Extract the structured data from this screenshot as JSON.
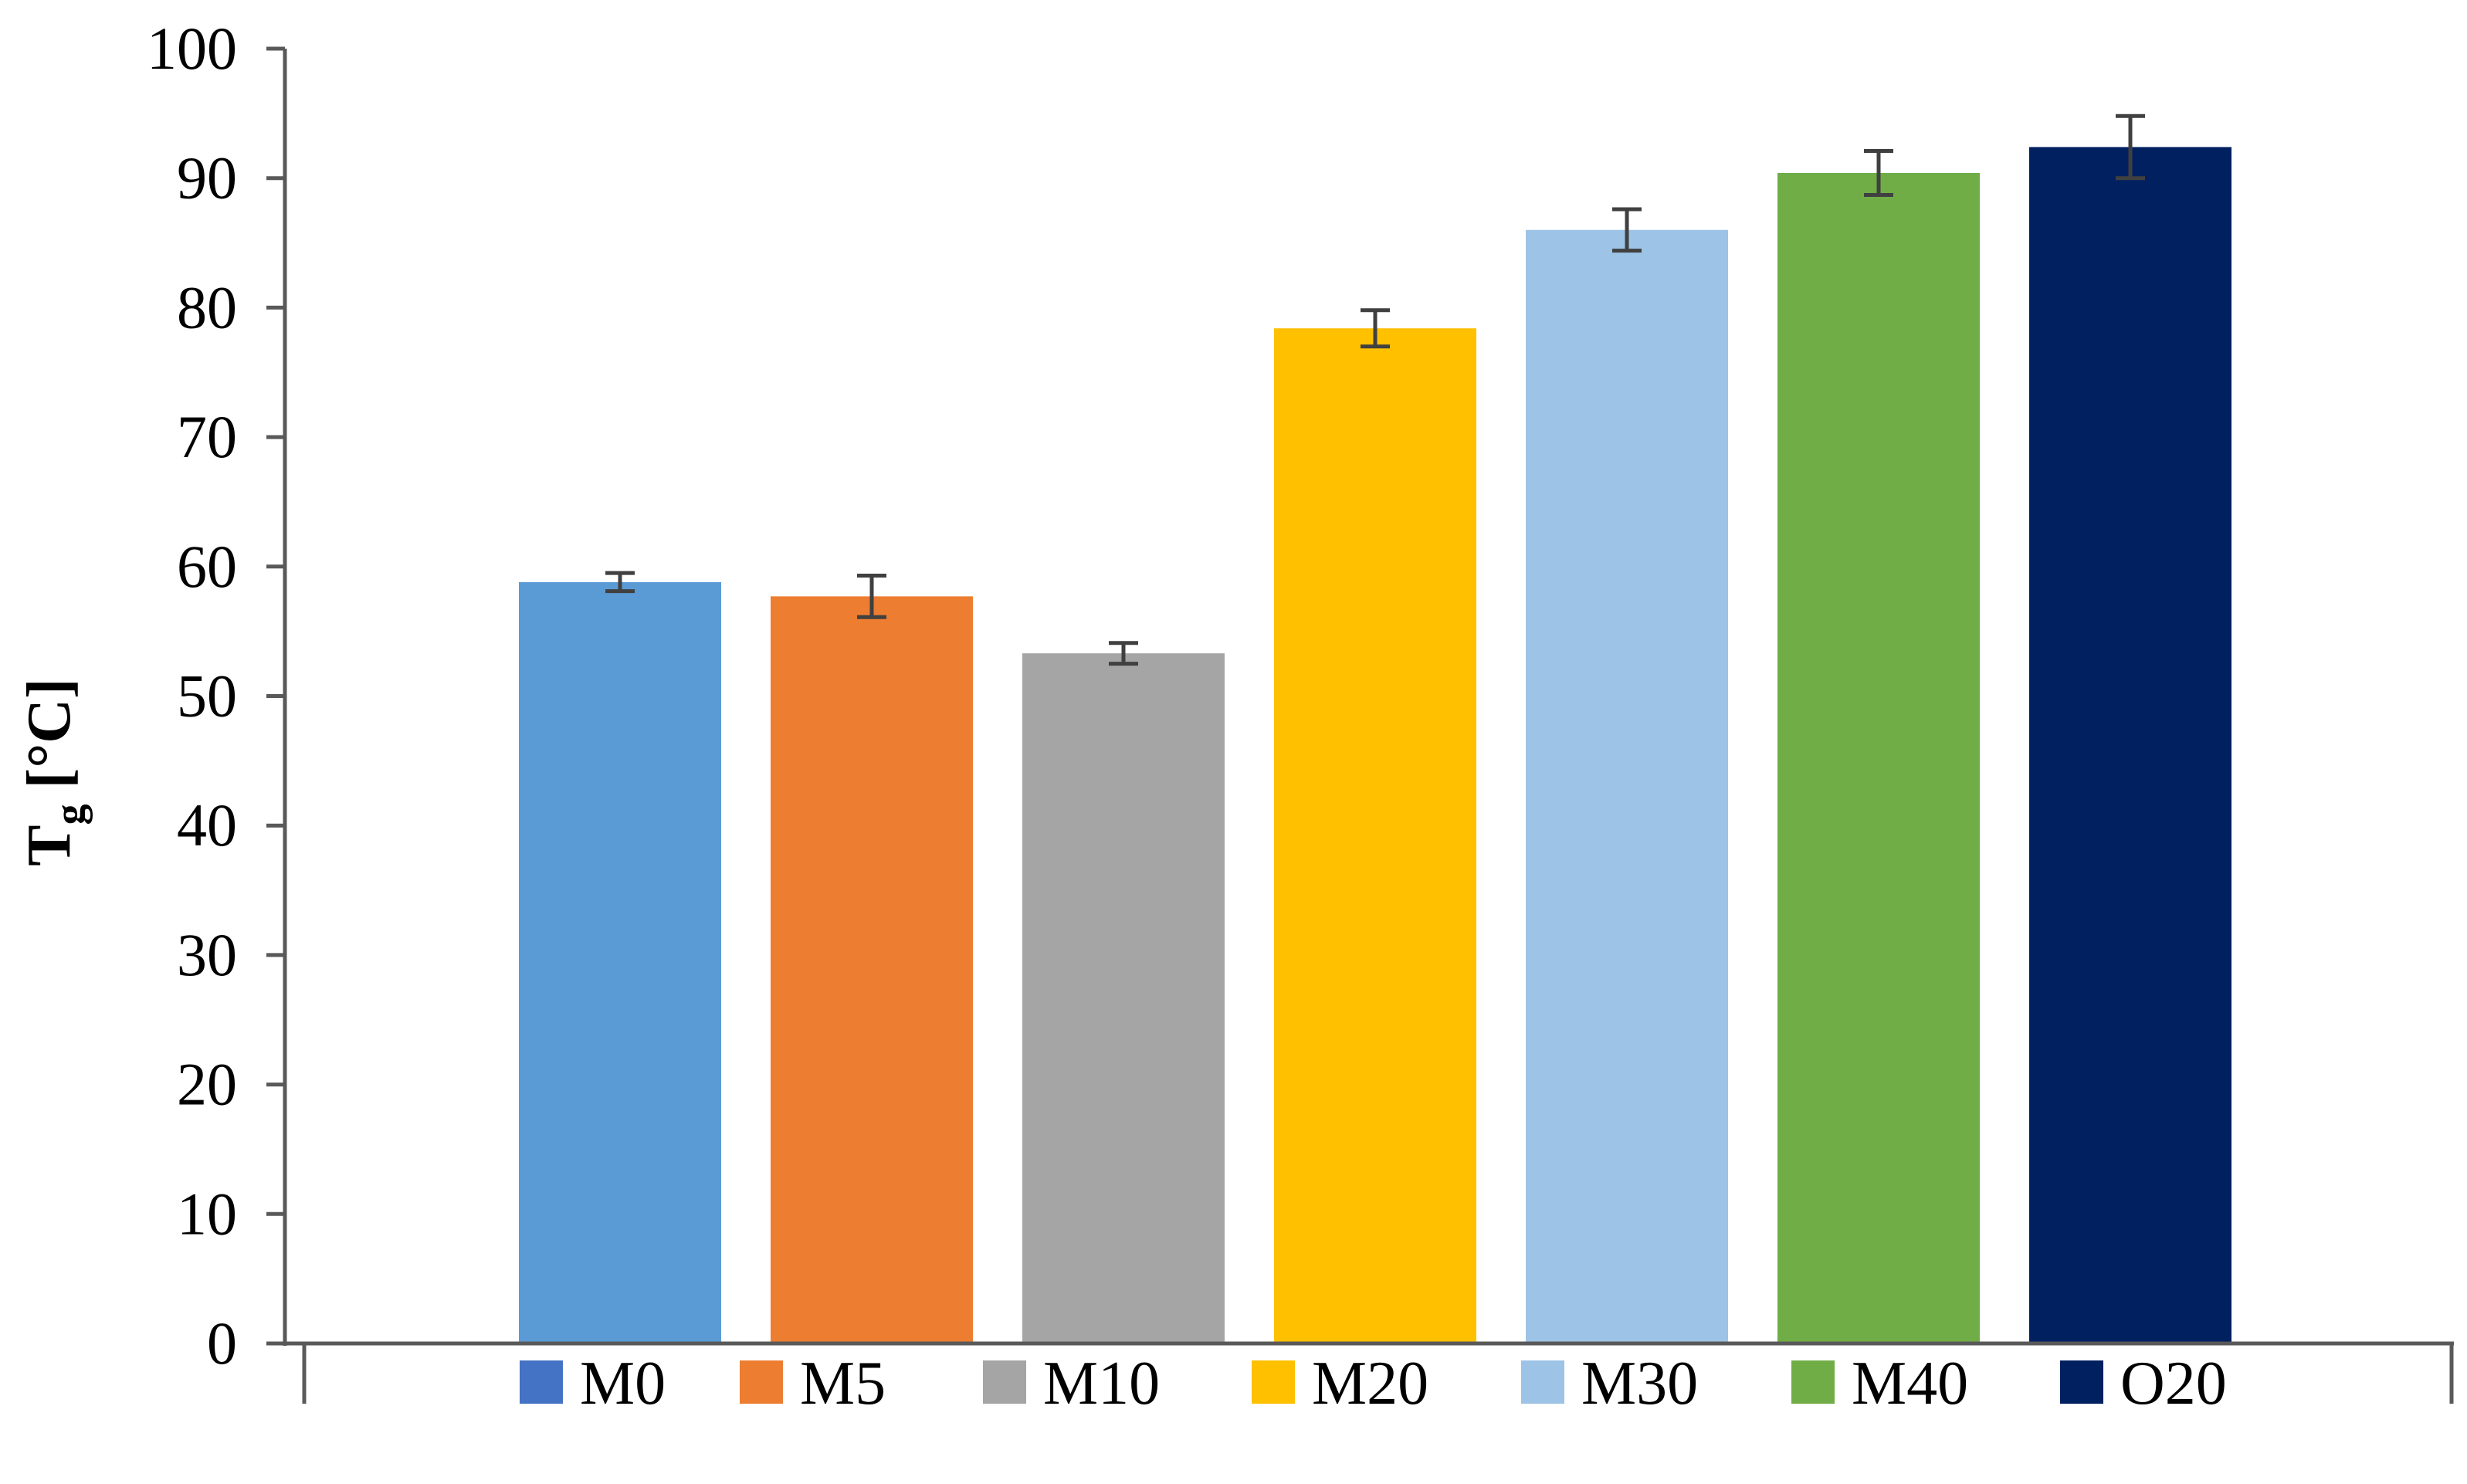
{
  "chart_data": {
    "type": "bar",
    "categories": [
      "M0",
      "M5",
      "M10",
      "M20",
      "M30",
      "M40",
      "O20"
    ],
    "series": [
      {
        "values": [
          58.8,
          57.7,
          53.3,
          78.4,
          86.0,
          90.4,
          92.4
        ],
        "errors": [
          0.7,
          1.6,
          0.8,
          1.4,
          1.6,
          1.7,
          2.4
        ]
      }
    ],
    "colors": [
      "#5B9BD5",
      "#ED7D31",
      "#A5A5A5",
      "#FFC000",
      "#9DC3E6",
      "#70AD47",
      "#002060"
    ],
    "legend_marker_colors": [
      "#4472C4",
      "#ED7D31",
      "#A5A5A5",
      "#FFC000",
      "#9DC3E6",
      "#70AD47",
      "#002060"
    ],
    "ylabel_main": "T",
    "ylabel_sub": "g",
    "ylabel_unit": " [°C]",
    "ylim": [
      0,
      100
    ],
    "yticks": [
      "0",
      "10",
      "20",
      "30",
      "40",
      "50",
      "60",
      "70",
      "80",
      "90",
      "100"
    ],
    "grid": false,
    "legend_position": "bottom"
  }
}
